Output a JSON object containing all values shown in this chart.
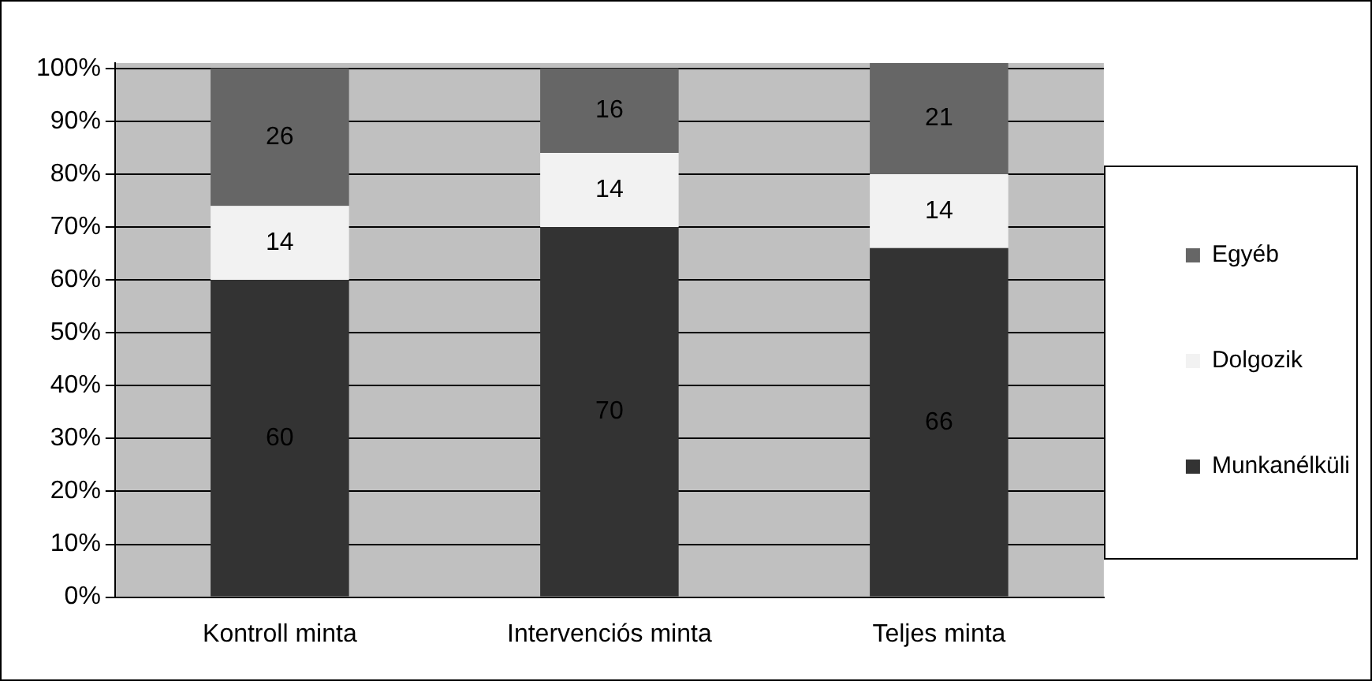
{
  "chart_data": {
    "type": "bar",
    "stacked": true,
    "categories": [
      "Kontroll minta",
      "Intervenciós minta",
      "Teljes minta"
    ],
    "series": [
      {
        "name": "Munkanélküli",
        "color": "#333333",
        "values": [
          60,
          70,
          66
        ],
        "value_labels": [
          "60",
          "70",
          "66"
        ]
      },
      {
        "name": "Dolgozik",
        "color": "#f2f2f2",
        "values": [
          14,
          14,
          14
        ],
        "value_labels": [
          "14",
          "14",
          "14"
        ]
      },
      {
        "name": "Egyéb",
        "color": "#666666",
        "values": [
          26,
          16,
          21
        ],
        "value_labels": [
          "26",
          "16",
          "21"
        ]
      }
    ],
    "ylim": [
      0,
      101
    ],
    "yticks": [
      {
        "value": 0,
        "label": "0%"
      },
      {
        "value": 10,
        "label": "10%"
      },
      {
        "value": 20,
        "label": "20%"
      },
      {
        "value": 30,
        "label": "30%"
      },
      {
        "value": 40,
        "label": "40%"
      },
      {
        "value": 50,
        "label": "50%"
      },
      {
        "value": 60,
        "label": "60%"
      },
      {
        "value": 70,
        "label": "70%"
      },
      {
        "value": 80,
        "label": "80%"
      },
      {
        "value": 90,
        "label": "90%"
      },
      {
        "value": 100,
        "label": "100%"
      }
    ],
    "grid": "y",
    "legend": "right"
  }
}
